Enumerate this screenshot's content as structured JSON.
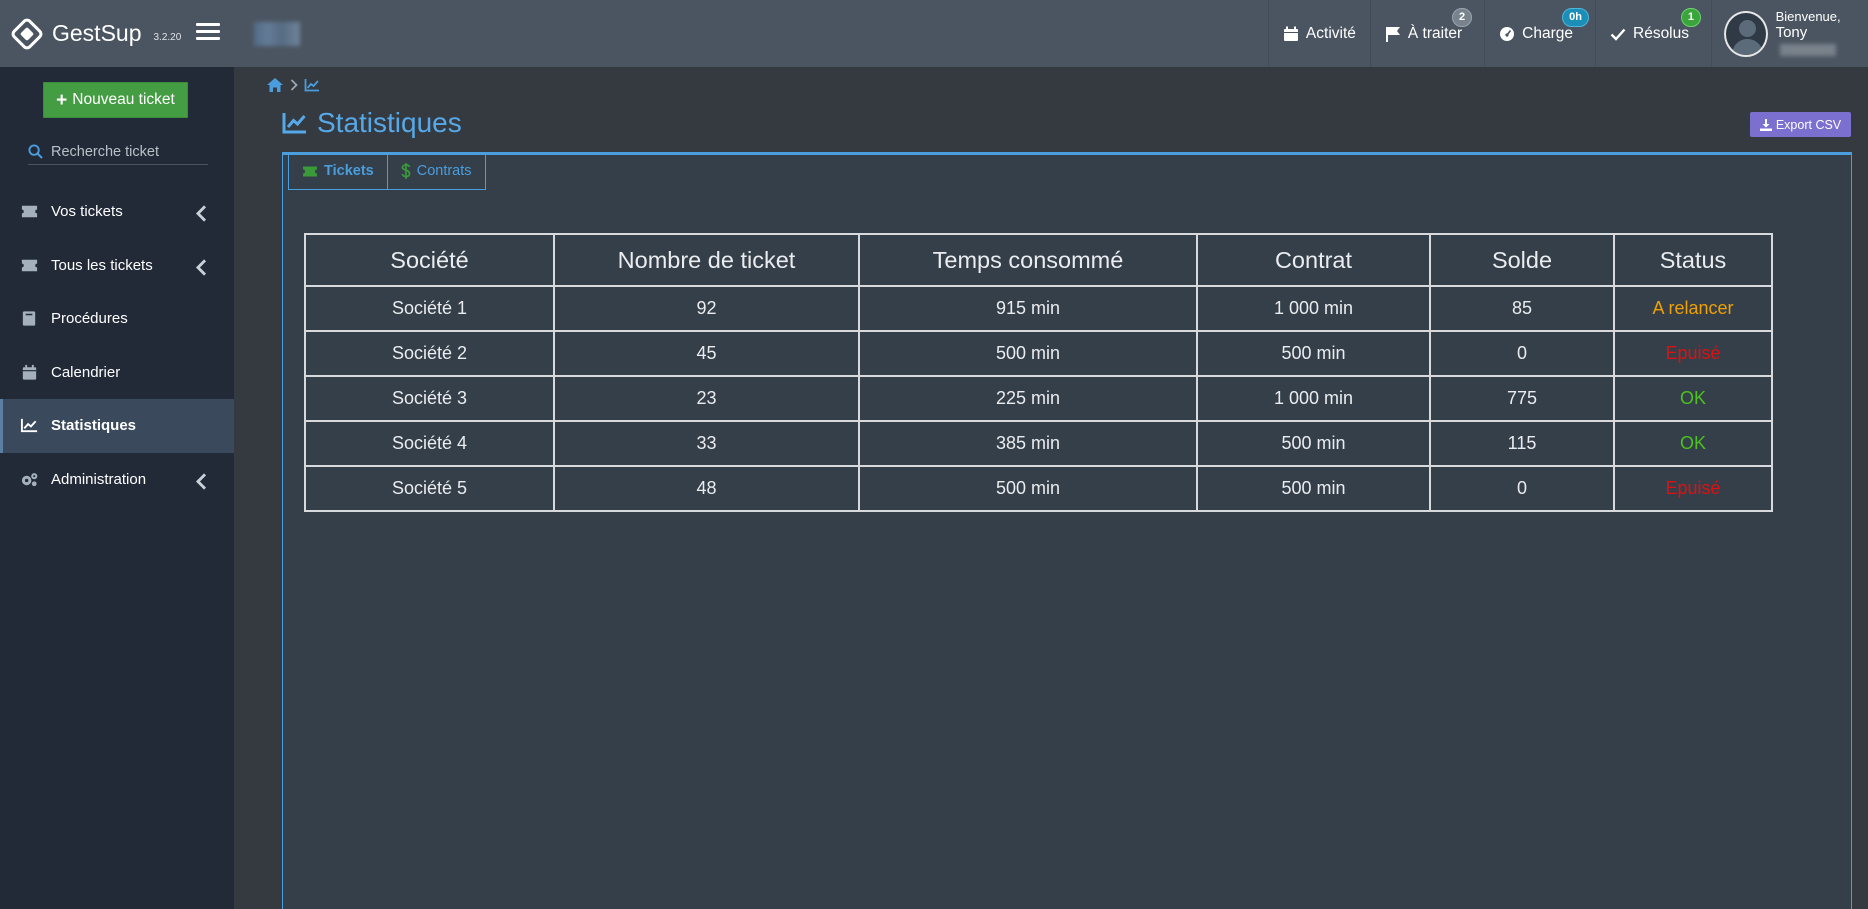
{
  "brand": {
    "name": "GestSup",
    "version": "3.2.20"
  },
  "topnav": {
    "activity": {
      "label": "Activité"
    },
    "to_process": {
      "label": "À traiter",
      "badge": "2"
    },
    "load": {
      "label": "Charge",
      "badge": "0h"
    },
    "resolved": {
      "label": "Résolus",
      "badge": "1"
    },
    "user": {
      "welcome": "Bienvenue,",
      "name": "Tony"
    }
  },
  "sidebar": {
    "new_ticket_label": "Nouveau ticket",
    "search_placeholder": "Recherche ticket",
    "items": [
      {
        "label": "Vos tickets",
        "icon": "ticket-icon",
        "has_chevron": true
      },
      {
        "label": "Tous les tickets",
        "icon": "ticket-icon",
        "has_chevron": true
      },
      {
        "label": "Procédures",
        "icon": "book-icon",
        "has_chevron": false
      },
      {
        "label": "Calendrier",
        "icon": "calendar-icon",
        "has_chevron": false
      },
      {
        "label": "Statistiques",
        "icon": "line-chart-icon",
        "has_chevron": false,
        "active": true
      },
      {
        "label": "Administration",
        "icon": "cogs-icon",
        "has_chevron": true
      }
    ]
  },
  "page": {
    "title": "Statistiques",
    "export_label": "Export CSV",
    "tabs": [
      {
        "label": "Tickets",
        "icon": "ticket-icon",
        "active": true
      },
      {
        "label": "Contrats",
        "icon": "dollar-icon",
        "active": false
      }
    ]
  },
  "table": {
    "headers": [
      "Société",
      "Nombre de ticket",
      "Temps consommé",
      "Contrat",
      "Solde",
      "Status"
    ],
    "rows": [
      {
        "societe": "Société 1",
        "nombre": "92",
        "temps": "915 min",
        "contrat": "1 000 min",
        "solde": "85",
        "status": "A relancer",
        "status_type": "warn"
      },
      {
        "societe": "Société 2",
        "nombre": "45",
        "temps": "500 min",
        "contrat": "500 min",
        "solde": "0",
        "status": "Epuisé",
        "status_type": "danger"
      },
      {
        "societe": "Société 3",
        "nombre": "23",
        "temps": "225 min",
        "contrat": "1 000 min",
        "solde": "775",
        "status": "OK",
        "status_type": "ok"
      },
      {
        "societe": "Société 4",
        "nombre": "33",
        "temps": "385 min",
        "contrat": "500 min",
        "solde": "115",
        "status": "OK",
        "status_type": "ok"
      },
      {
        "societe": "Société 5",
        "nombre": "48",
        "temps": "500 min",
        "contrat": "500 min",
        "solde": "0",
        "status": "Epuisé",
        "status_type": "danger"
      }
    ]
  },
  "colors": {
    "accent": "#4a9edd",
    "success": "#459d43",
    "export": "#7b6fd0",
    "warn": "#f0a000",
    "danger": "#e01010",
    "ok": "#4bc21f"
  }
}
